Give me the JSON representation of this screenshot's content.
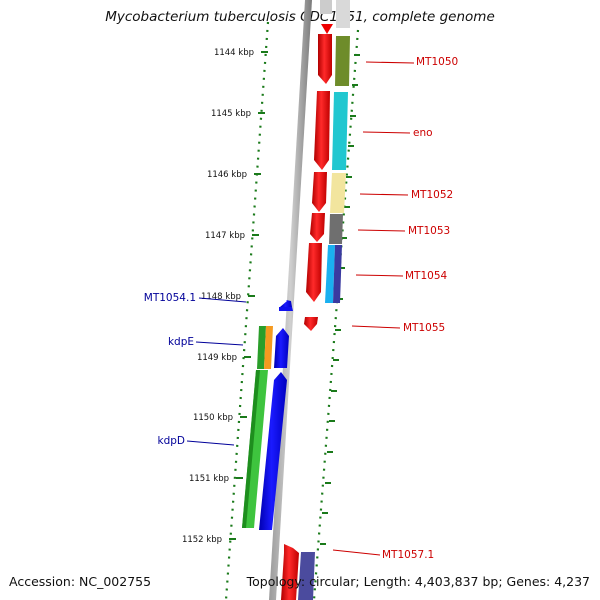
{
  "title": "Mycobacterium tuberculosis CDC1551, complete genome",
  "footer": {
    "accession": "Accession: NC_002755",
    "topology": "Topology: circular; Length: 4,403,837 bp; Genes: 4,237"
  },
  "scale_ticks": [
    "1144 kbp",
    "1145 kbp",
    "1146 kbp",
    "1147 kbp",
    "1148 kbp",
    "1149 kbp",
    "1150 kbp",
    "1151 kbp",
    "1152 kbp"
  ],
  "gene_labels_right": [
    {
      "text": "MT1050",
      "color": "#cc0000"
    },
    {
      "text": "eno",
      "color": "#cc0000"
    },
    {
      "text": "MT1052",
      "color": "#cc0000"
    },
    {
      "text": "MT1053",
      "color": "#cc0000"
    },
    {
      "text": "MT1054",
      "color": "#cc0000"
    },
    {
      "text": "MT1055",
      "color": "#cc0000"
    },
    {
      "text": "MT1057.1",
      "color": "#cc0000"
    }
  ],
  "gene_labels_left": [
    {
      "text": "MT1054.1",
      "color": "#000099"
    },
    {
      "text": "kdpE",
      "color": "#000099"
    },
    {
      "text": "kdpD",
      "color": "#000099"
    }
  ],
  "colors": {
    "backbone": "#8c8c8c",
    "forward_strand": "#ee0000",
    "reverse_strand": "#0000ee",
    "tick_green": "#1a7a1a",
    "label_right": "#cc0000",
    "label_left": "#000099"
  }
}
